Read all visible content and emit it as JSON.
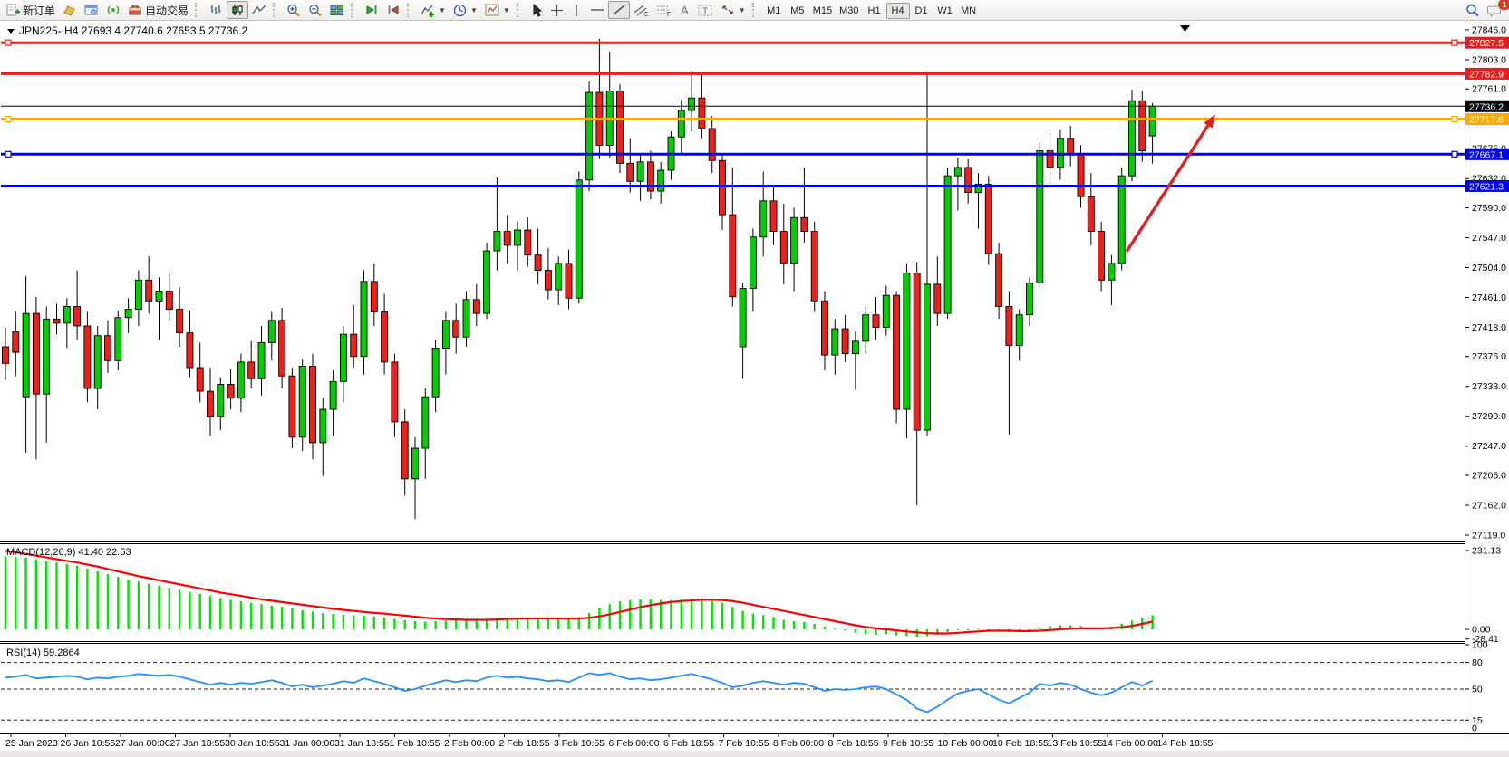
{
  "toolbar": {
    "new_order": "新订单",
    "auto_trading": "自动交易",
    "timeframes": [
      "M1",
      "M5",
      "M15",
      "M30",
      "H1",
      "H4",
      "D1",
      "W1",
      "MN"
    ],
    "active_timeframe": "H4",
    "notification_badge": "1"
  },
  "chart": {
    "title_text": "JPN225-,H4  27693.4 27740.6 27653.5 27736.2",
    "macd_label": "MACD(12,26,9) 41.40 22.53",
    "rsi_label": "RSI(14) 59.2864",
    "colors": {
      "bull": "#00ce00",
      "bear": "#ee2019",
      "wick": "#000000",
      "line_red": "#e81c1a",
      "line_orange": "#ffa800",
      "line_blue": "#0000f0",
      "price_line": "#000000",
      "macd_hist": "#00e400",
      "macd_signal": "#ff0000",
      "rsi": "#1e90ff",
      "arrow": "#e02020"
    }
  },
  "chart_data": {
    "type": "candlestick",
    "symbol": "JPN225-",
    "timeframe": "H4",
    "last_bar": {
      "open": 27693.4,
      "high": 27740.6,
      "low": 27653.5,
      "close": 27736.2
    },
    "current_price": 27736.2,
    "price_axis_ticks": [
      27846.0,
      27803.0,
      27761.0,
      27718.0,
      27675.0,
      27632.0,
      27590.0,
      27547.0,
      27504.0,
      27461.0,
      27418.0,
      27376.0,
      27333.0,
      27290.0,
      27247.0,
      27205.0,
      27162.0,
      27119.0
    ],
    "horizontal_lines": [
      {
        "price": 27827.5,
        "color": "red",
        "selected": true
      },
      {
        "price": 27782.9,
        "color": "red",
        "selected": false
      },
      {
        "price": 27736.2,
        "color": "black",
        "style": "current-price",
        "selected": false
      },
      {
        "price": 27717.6,
        "color": "orange",
        "selected": true
      },
      {
        "price": 27667.1,
        "color": "blue",
        "selected": true
      },
      {
        "price": 27621.3,
        "color": "blue",
        "selected": false
      }
    ],
    "x_axis_labels": [
      "25 Jan 2023",
      "26 Jan 10:55",
      "27 Jan 00:00",
      "27 Jan 18:55",
      "30 Jan 10:55",
      "31 Jan 00:00",
      "31 Jan 18:55",
      "1 Feb 10:55",
      "2 Feb 00:00",
      "2 Feb 18:55",
      "3 Feb 10:55",
      "6 Feb 00:00",
      "6 Feb 18:55",
      "7 Feb 10:55",
      "8 Feb 00:00",
      "8 Feb 18:55",
      "9 Feb 10:55",
      "10 Feb 00:00",
      "10 Feb 18:55",
      "13 Feb 10:55",
      "14 Feb 00:00",
      "14 Feb 18:55"
    ],
    "candles": [
      [
        27390,
        27418,
        27342,
        27366
      ],
      [
        27412,
        27440,
        27348,
        27382
      ],
      [
        27318,
        27492,
        27238,
        27438
      ],
      [
        27438,
        27462,
        27228,
        27322
      ],
      [
        27322,
        27448,
        27252,
        27430
      ],
      [
        27430,
        27452,
        27408,
        27424
      ],
      [
        27424,
        27460,
        27388,
        27448
      ],
      [
        27448,
        27500,
        27400,
        27420
      ],
      [
        27420,
        27440,
        27310,
        27330
      ],
      [
        27330,
        27420,
        27300,
        27406
      ],
      [
        27406,
        27428,
        27352,
        27370
      ],
      [
        27370,
        27442,
        27356,
        27432
      ],
      [
        27432,
        27460,
        27410,
        27444
      ],
      [
        27444,
        27500,
        27420,
        27486
      ],
      [
        27486,
        27520,
        27438,
        27456
      ],
      [
        27456,
        27490,
        27400,
        27470
      ],
      [
        27470,
        27496,
        27428,
        27444
      ],
      [
        27444,
        27476,
        27390,
        27410
      ],
      [
        27410,
        27442,
        27346,
        27360
      ],
      [
        27360,
        27396,
        27310,
        27326
      ],
      [
        27326,
        27360,
        27262,
        27290
      ],
      [
        27290,
        27346,
        27270,
        27336
      ],
      [
        27336,
        27358,
        27300,
        27316
      ],
      [
        27316,
        27380,
        27296,
        27368
      ],
      [
        27368,
        27398,
        27330,
        27344
      ],
      [
        27344,
        27420,
        27320,
        27396
      ],
      [
        27396,
        27440,
        27370,
        27428
      ],
      [
        27428,
        27446,
        27330,
        27348
      ],
      [
        27348,
        27360,
        27244,
        27260
      ],
      [
        27260,
        27372,
        27240,
        27362
      ],
      [
        27362,
        27380,
        27228,
        27252
      ],
      [
        27252,
        27316,
        27204,
        27300
      ],
      [
        27300,
        27356,
        27262,
        27340
      ],
      [
        27340,
        27420,
        27310,
        27408
      ],
      [
        27408,
        27450,
        27360,
        27376
      ],
      [
        27376,
        27500,
        27350,
        27484
      ],
      [
        27484,
        27510,
        27420,
        27440
      ],
      [
        27440,
        27466,
        27350,
        27368
      ],
      [
        27368,
        27380,
        27260,
        27282
      ],
      [
        27282,
        27300,
        27176,
        27200
      ],
      [
        27200,
        27260,
        27142,
        27244
      ],
      [
        27244,
        27330,
        27200,
        27318
      ],
      [
        27318,
        27400,
        27296,
        27388
      ],
      [
        27388,
        27440,
        27350,
        27428
      ],
      [
        27428,
        27452,
        27380,
        27404
      ],
      [
        27404,
        27470,
        27390,
        27458
      ],
      [
        27458,
        27480,
        27420,
        27438
      ],
      [
        27438,
        27540,
        27430,
        27528
      ],
      [
        27528,
        27634,
        27500,
        27556
      ],
      [
        27556,
        27580,
        27510,
        27536
      ],
      [
        27536,
        27570,
        27500,
        27558
      ],
      [
        27558,
        27576,
        27505,
        27522
      ],
      [
        27522,
        27560,
        27480,
        27500
      ],
      [
        27500,
        27532,
        27458,
        27472
      ],
      [
        27472,
        27520,
        27450,
        27510
      ],
      [
        27510,
        27530,
        27444,
        27460
      ],
      [
        27460,
        27642,
        27452,
        27630
      ],
      [
        27630,
        27772,
        27614,
        27756
      ],
      [
        27756,
        27833,
        27660,
        27680
      ],
      [
        27680,
        27815,
        27662,
        27758
      ],
      [
        27758,
        27768,
        27640,
        27654
      ],
      [
        27654,
        27690,
        27612,
        27628
      ],
      [
        27628,
        27668,
        27600,
        27656
      ],
      [
        27656,
        27672,
        27602,
        27614
      ],
      [
        27614,
        27656,
        27596,
        27644
      ],
      [
        27644,
        27700,
        27630,
        27692
      ],
      [
        27692,
        27745,
        27668,
        27730
      ],
      [
        27730,
        27787,
        27700,
        27748
      ],
      [
        27748,
        27782,
        27690,
        27704
      ],
      [
        27704,
        27722,
        27640,
        27658
      ],
      [
        27658,
        27668,
        27558,
        27580
      ],
      [
        27580,
        27648,
        27448,
        27462
      ],
      [
        27390,
        27482,
        27344,
        27474
      ],
      [
        27474,
        27560,
        27440,
        27548
      ],
      [
        27548,
        27642,
        27520,
        27600
      ],
      [
        27600,
        27622,
        27536,
        27556
      ],
      [
        27556,
        27596,
        27480,
        27510
      ],
      [
        27510,
        27590,
        27470,
        27576
      ],
      [
        27576,
        27648,
        27540,
        27556
      ],
      [
        27556,
        27570,
        27440,
        27456
      ],
      [
        27456,
        27470,
        27356,
        27378
      ],
      [
        27378,
        27430,
        27350,
        27416
      ],
      [
        27416,
        27436,
        27368,
        27380
      ],
      [
        27380,
        27412,
        27328,
        27398
      ],
      [
        27398,
        27448,
        27380,
        27436
      ],
      [
        27436,
        27462,
        27400,
        27418
      ],
      [
        27418,
        27478,
        27406,
        27464
      ],
      [
        27464,
        27470,
        27280,
        27300
      ],
      [
        27300,
        27510,
        27258,
        27496
      ],
      [
        27496,
        27512,
        27162,
        27270
      ],
      [
        27270,
        27786,
        27262,
        27480
      ],
      [
        27480,
        27520,
        27420,
        27438
      ],
      [
        27438,
        27648,
        27430,
        27636
      ],
      [
        27636,
        27662,
        27586,
        27648
      ],
      [
        27648,
        27660,
        27596,
        27612
      ],
      [
        27612,
        27640,
        27560,
        27624
      ],
      [
        27624,
        27636,
        27508,
        27524
      ],
      [
        27524,
        27540,
        27430,
        27448
      ],
      [
        27448,
        27470,
        27264,
        27392
      ],
      [
        27392,
        27444,
        27370,
        27436
      ],
      [
        27436,
        27490,
        27420,
        27482
      ],
      [
        27482,
        27684,
        27476,
        27672
      ],
      [
        27672,
        27698,
        27624,
        27648
      ],
      [
        27648,
        27702,
        27630,
        27690
      ],
      [
        27690,
        27708,
        27650,
        27668
      ],
      [
        27668,
        27680,
        27590,
        27606
      ],
      [
        27606,
        27640,
        27536,
        27556
      ],
      [
        27556,
        27570,
        27470,
        27486
      ],
      [
        27486,
        27522,
        27450,
        27510
      ],
      [
        27510,
        27648,
        27500,
        27636
      ],
      [
        27636,
        27760,
        27628,
        27744
      ],
      [
        27744,
        27758,
        27656,
        27672
      ],
      [
        27693.4,
        27740.6,
        27653.5,
        27736.2
      ]
    ],
    "macd": {
      "params": "12,26,9",
      "current_main": 41.4,
      "current_signal": 22.53,
      "axis_ticks": [
        231.13,
        0.0,
        -28.41
      ],
      "histogram": [
        214,
        212,
        210,
        206,
        200,
        196,
        192,
        186,
        178,
        170,
        162,
        154,
        146,
        140,
        134,
        128,
        122,
        116,
        110,
        104,
        98,
        92,
        87,
        82,
        78,
        74,
        70,
        66,
        61,
        56,
        52,
        48,
        45,
        43,
        41,
        40,
        38,
        35,
        31,
        27,
        24,
        23,
        24,
        26,
        27,
        28,
        28,
        30,
        33,
        34,
        35,
        34,
        33,
        32,
        31,
        31,
        36,
        48,
        62,
        74,
        82,
        86,
        88,
        88,
        86,
        86,
        88,
        90,
        90,
        86,
        78,
        66,
        54,
        46,
        42,
        36,
        28,
        24,
        22,
        16,
        8,
        2,
        -4,
        -10,
        -14,
        -16,
        -14,
        -18,
        -20,
        -24,
        -20,
        -16,
        -8,
        -2,
        0,
        2,
        0,
        -4,
        -8,
        -6,
        -2,
        6,
        10,
        12,
        12,
        10,
        6,
        4,
        8,
        16,
        26,
        34,
        41.4
      ],
      "signal": [
        230,
        226,
        221,
        216,
        211,
        206,
        201,
        196,
        190,
        184,
        177,
        170,
        163,
        156,
        150,
        144,
        138,
        132,
        126,
        120,
        114,
        108,
        103,
        98,
        93,
        88,
        84,
        80,
        76,
        72,
        68,
        64,
        60,
        57,
        54,
        51,
        48,
        46,
        43,
        40,
        37,
        34,
        32,
        30,
        29,
        28,
        28,
        28,
        29,
        30,
        31,
        32,
        32,
        32,
        32,
        31,
        32,
        34,
        38,
        44,
        51,
        58,
        65,
        71,
        76,
        80,
        83,
        85,
        87,
        87,
        86,
        83,
        78,
        72,
        66,
        60,
        54,
        48,
        42,
        36,
        30,
        24,
        18,
        12,
        7,
        3,
        0,
        -3,
        -6,
        -9,
        -11,
        -12,
        -12,
        -10,
        -8,
        -6,
        -4,
        -4,
        -4,
        -5,
        -5,
        -4,
        -2,
        0,
        2,
        3,
        3,
        3,
        4,
        6,
        10,
        16,
        22.53
      ]
    },
    "rsi": {
      "period": 14,
      "current": 59.2864,
      "axis_ticks": [
        100,
        80,
        50,
        15,
        0
      ],
      "levels": [
        80,
        50,
        15
      ],
      "values": [
        63,
        64,
        66,
        62,
        63,
        64,
        65,
        64,
        61,
        63,
        62,
        64,
        65,
        67,
        66,
        65,
        66,
        64,
        61,
        58,
        55,
        57,
        55,
        57,
        56,
        58,
        60,
        57,
        53,
        55,
        52,
        54,
        56,
        59,
        57,
        62,
        59,
        56,
        52,
        48,
        50,
        54,
        57,
        60,
        58,
        60,
        59,
        63,
        65,
        63,
        64,
        62,
        61,
        59,
        60,
        58,
        63,
        68,
        66,
        68,
        64,
        61,
        62,
        60,
        61,
        63,
        65,
        67,
        64,
        61,
        57,
        52,
        54,
        57,
        59,
        57,
        55,
        57,
        56,
        52,
        48,
        50,
        49,
        50,
        52,
        53,
        50,
        44,
        38,
        28,
        24,
        30,
        38,
        45,
        48,
        50,
        44,
        38,
        34,
        40,
        46,
        56,
        54,
        57,
        55,
        50,
        46,
        43,
        46,
        52,
        58,
        54,
        59.2864
      ]
    },
    "trend_arrow": {
      "from": [
        1243,
        255
      ],
      "to": [
        1341,
        103
      ]
    }
  }
}
